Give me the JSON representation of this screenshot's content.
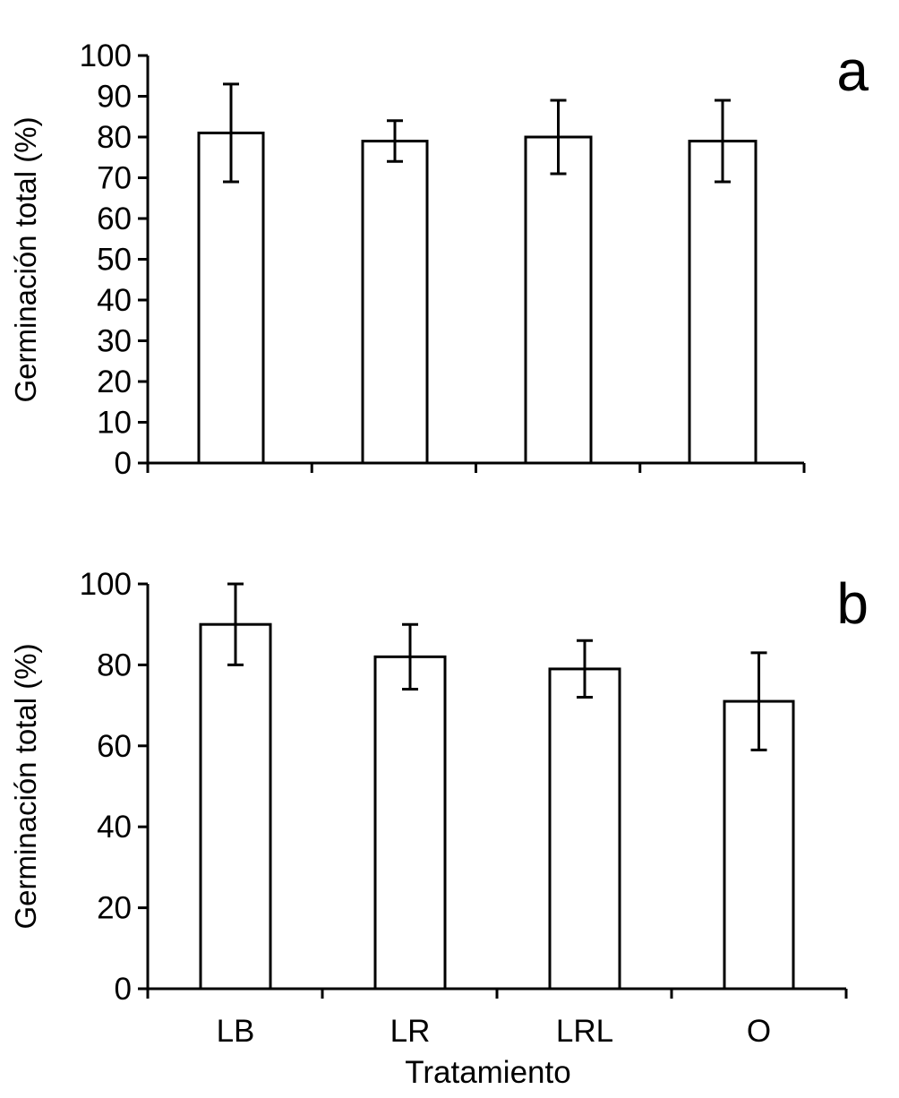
{
  "colors": {
    "bar_fill": "#ffffff",
    "stroke": "#000000",
    "background": "#ffffff"
  },
  "chart_data": [
    {
      "type": "bar",
      "panel_label": "a",
      "categories": [
        "LB",
        "LR",
        "LRL",
        "O"
      ],
      "values": [
        81,
        79,
        80,
        79
      ],
      "errors": [
        12,
        5,
        9,
        10
      ],
      "ylabel": "Germinación total (%)",
      "xlabel": "",
      "ylim": [
        0,
        100
      ],
      "yticks": [
        0,
        10,
        20,
        30,
        40,
        50,
        60,
        70,
        80,
        90,
        100
      ],
      "ytick_labels": [
        "0",
        "10",
        "20",
        "30",
        "40",
        "50",
        "60",
        "70",
        "80",
        "90",
        "100"
      ],
      "show_category_labels": false,
      "grid": false,
      "legend": "none"
    },
    {
      "type": "bar",
      "panel_label": "b",
      "categories": [
        "LB",
        "LR",
        "LRL",
        "O"
      ],
      "values": [
        90,
        82,
        79,
        71
      ],
      "errors": [
        10,
        8,
        7,
        12
      ],
      "ylabel": "Germinación total (%)",
      "xlabel": "Tratamiento",
      "ylim": [
        0,
        100
      ],
      "yticks": [
        0,
        20,
        40,
        60,
        80,
        100
      ],
      "ytick_labels": [
        "0",
        "20",
        "40",
        "60",
        "80",
        "100"
      ],
      "show_category_labels": true,
      "grid": false,
      "legend": "none"
    }
  ]
}
